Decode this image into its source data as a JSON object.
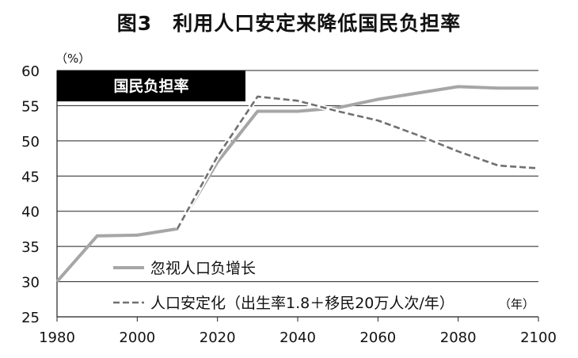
{
  "chart_data": {
    "type": "line",
    "title": "图3　利用人口安定来降低国民负担率",
    "y_unit": "（%）",
    "x_unit": "（年）",
    "badge": "国民负担率",
    "xlim": [
      1980,
      2100
    ],
    "ylim": [
      25,
      60
    ],
    "x_ticks": [
      1980,
      2000,
      2020,
      2040,
      2060,
      2080,
      2100
    ],
    "y_ticks": [
      25,
      30,
      35,
      40,
      45,
      50,
      55,
      60
    ],
    "grid": "horizontal",
    "legend_position": "bottom-left",
    "series": [
      {
        "name": "忽视人口负增长",
        "style": "solid",
        "color": "#a6a6a6",
        "points": [
          [
            1980,
            30.0
          ],
          [
            1990,
            36.5
          ],
          [
            2000,
            36.6
          ],
          [
            2010,
            37.5
          ],
          [
            2020,
            47.0
          ],
          [
            2030,
            54.2
          ],
          [
            2040,
            54.2
          ],
          [
            2050,
            54.7
          ],
          [
            2060,
            55.9
          ],
          [
            2070,
            56.8
          ],
          [
            2080,
            57.7
          ],
          [
            2090,
            57.5
          ],
          [
            2100,
            57.5
          ]
        ]
      },
      {
        "name": "人口安定化（出生率1.8＋移民20万人次/年）",
        "style": "dashed",
        "color": "#707070",
        "points": [
          [
            2010,
            37.5
          ],
          [
            2020,
            47.8
          ],
          [
            2030,
            56.3
          ],
          [
            2040,
            55.7
          ],
          [
            2050,
            54.2
          ],
          [
            2060,
            52.9
          ],
          [
            2070,
            50.8
          ],
          [
            2080,
            48.5
          ],
          [
            2090,
            46.5
          ],
          [
            2100,
            46.1
          ]
        ]
      }
    ]
  }
}
